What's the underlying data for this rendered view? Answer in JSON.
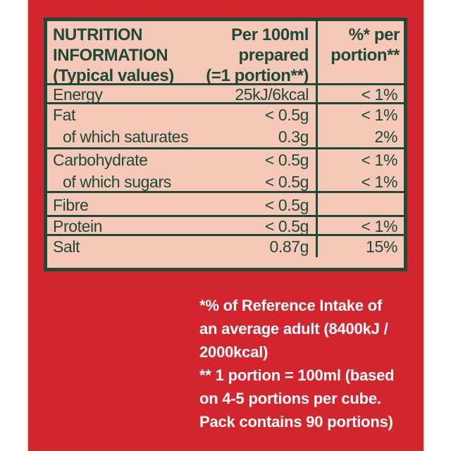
{
  "colors": {
    "red": "#d3252e",
    "pink": "#f5c8b8",
    "green": "#1e4938",
    "white": "#ffffff",
    "edge": "#f0dcc4"
  },
  "table": {
    "header": {
      "title_lines": [
        "NUTRITION",
        "INFORMATION",
        "(Typical values)"
      ],
      "per100_lines": [
        "Per 100ml",
        "prepared",
        "(=1 portion**)"
      ],
      "pct_lines": [
        "%* per",
        "portion**"
      ]
    },
    "sections": [
      {
        "rows": [
          {
            "name": "Energy",
            "value": "25kJ/6kcal",
            "pct": "< 1%"
          }
        ]
      },
      {
        "rows": [
          {
            "name": "Fat",
            "value": "< 0.5g",
            "pct": "< 1%"
          },
          {
            "name": "of which saturates",
            "value": "0.3g",
            "pct": "2%"
          }
        ]
      },
      {
        "rows": [
          {
            "name": "Carbohydrate",
            "value": "< 0.5g",
            "pct": "< 1%"
          },
          {
            "name": "of which sugars",
            "value": "< 0.5g",
            "pct": "< 1%"
          }
        ]
      },
      {
        "rows": [
          {
            "name": "Fibre",
            "value": "< 0.5g",
            "pct": ""
          }
        ]
      },
      {
        "rows": [
          {
            "name": "Protein",
            "value": "< 0.5g",
            "pct": "< 1%"
          }
        ]
      },
      {
        "rows": [
          {
            "name": "Salt",
            "value": "0.87g",
            "pct": "15%"
          }
        ]
      }
    ]
  },
  "footnotes": {
    "reference_intake_lines": [
      "*% of Reference Intake of",
      "an average adult (8400kJ /",
      "2000kcal)"
    ],
    "portion_lines": [
      "** 1 portion = 100ml (based",
      "on 4-5 portions per cube.",
      "Pack contains 90 portions)"
    ]
  }
}
